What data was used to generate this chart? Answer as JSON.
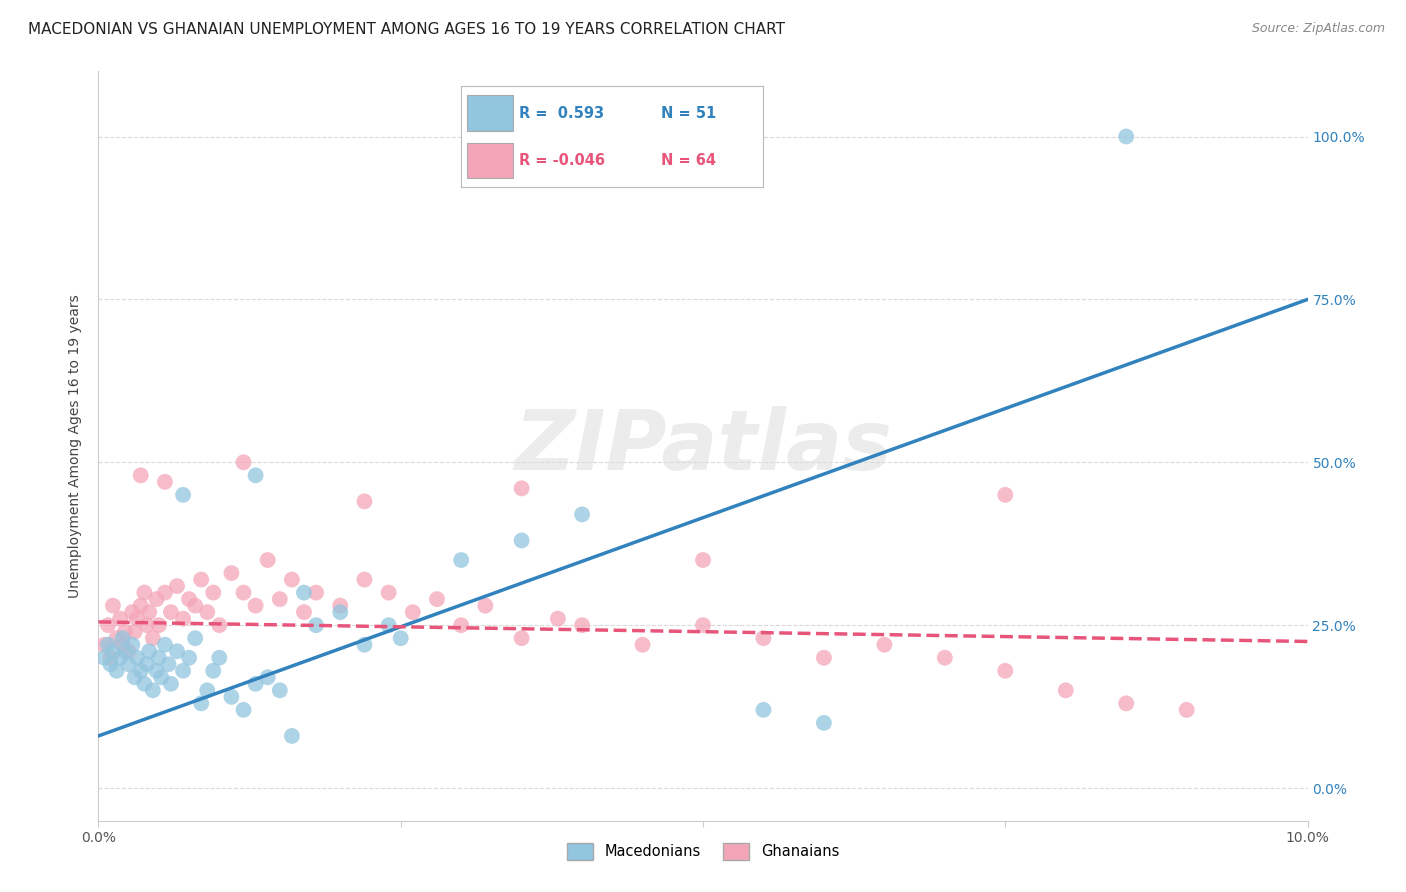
{
  "title": "MACEDONIAN VS GHANAIAN UNEMPLOYMENT AMONG AGES 16 TO 19 YEARS CORRELATION CHART",
  "source": "Source: ZipAtlas.com",
  "ylabel": "Unemployment Among Ages 16 to 19 years",
  "xlim": [
    0.0,
    10.0
  ],
  "ylim": [
    -0.05,
    1.1
  ],
  "yticks": [
    0.0,
    0.25,
    0.5,
    0.75,
    1.0
  ],
  "ytick_labels": [
    "0.0%",
    "25.0%",
    "50.0%",
    "75.0%",
    "100.0%"
  ],
  "xticks": [
    0.0,
    2.5,
    5.0,
    7.5,
    10.0
  ],
  "xtick_labels": [
    "0.0%",
    "",
    "",
    "",
    "10.0%"
  ],
  "blue_color": "#92c5de",
  "pink_color": "#f4a6b8",
  "blue_line_color": "#3182bd",
  "pink_line_color": "#e8557a",
  "blue_R": 0.593,
  "blue_N": 51,
  "pink_R": -0.046,
  "pink_N": 64,
  "legend_label_blue": "Macedonians",
  "legend_label_pink": "Ghanaians",
  "background_color": "#ffffff",
  "grid_color": "#d0d0d0",
  "watermark_text": "ZIPatlas",
  "title_fontsize": 11,
  "source_fontsize": 9,
  "blue_line_y0": 0.08,
  "blue_line_y1": 0.75,
  "pink_line_y0": 0.255,
  "pink_line_y1": 0.225,
  "macedonian_x": [
    0.05,
    0.08,
    0.1,
    0.12,
    0.15,
    0.18,
    0.2,
    0.22,
    0.25,
    0.28,
    0.3,
    0.32,
    0.35,
    0.38,
    0.4,
    0.42,
    0.45,
    0.48,
    0.5,
    0.52,
    0.55,
    0.58,
    0.6,
    0.65,
    0.7,
    0.75,
    0.8,
    0.85,
    0.9,
    0.95,
    1.0,
    1.1,
    1.2,
    1.3,
    1.4,
    1.5,
    1.6,
    1.7,
    1.8,
    2.0,
    2.2,
    2.4,
    2.5,
    3.0,
    3.5,
    4.0,
    5.5,
    6.0,
    8.5,
    0.7,
    1.3
  ],
  "macedonian_y": [
    0.2,
    0.22,
    0.19,
    0.21,
    0.18,
    0.2,
    0.23,
    0.21,
    0.19,
    0.22,
    0.17,
    0.2,
    0.18,
    0.16,
    0.19,
    0.21,
    0.15,
    0.18,
    0.2,
    0.17,
    0.22,
    0.19,
    0.16,
    0.21,
    0.18,
    0.2,
    0.23,
    0.13,
    0.15,
    0.18,
    0.2,
    0.14,
    0.12,
    0.16,
    0.17,
    0.15,
    0.08,
    0.3,
    0.25,
    0.27,
    0.22,
    0.25,
    0.23,
    0.35,
    0.38,
    0.42,
    0.12,
    0.1,
    1.0,
    0.45,
    0.48
  ],
  "ghanaian_x": [
    0.05,
    0.08,
    0.1,
    0.12,
    0.15,
    0.18,
    0.2,
    0.22,
    0.25,
    0.28,
    0.3,
    0.32,
    0.35,
    0.38,
    0.4,
    0.42,
    0.45,
    0.48,
    0.5,
    0.55,
    0.6,
    0.65,
    0.7,
    0.75,
    0.8,
    0.85,
    0.9,
    0.95,
    1.0,
    1.1,
    1.2,
    1.3,
    1.4,
    1.5,
    1.6,
    1.7,
    1.8,
    2.0,
    2.2,
    2.4,
    2.6,
    2.8,
    3.0,
    3.2,
    3.5,
    3.8,
    4.0,
    4.5,
    5.0,
    5.5,
    6.0,
    6.5,
    7.0,
    7.5,
    8.0,
    8.5,
    9.0,
    0.35,
    0.55,
    1.2,
    2.2,
    3.5,
    5.0,
    7.5
  ],
  "ghanaian_y": [
    0.22,
    0.25,
    0.2,
    0.28,
    0.23,
    0.26,
    0.22,
    0.24,
    0.21,
    0.27,
    0.24,
    0.26,
    0.28,
    0.3,
    0.25,
    0.27,
    0.23,
    0.29,
    0.25,
    0.3,
    0.27,
    0.31,
    0.26,
    0.29,
    0.28,
    0.32,
    0.27,
    0.3,
    0.25,
    0.33,
    0.3,
    0.28,
    0.35,
    0.29,
    0.32,
    0.27,
    0.3,
    0.28,
    0.32,
    0.3,
    0.27,
    0.29,
    0.25,
    0.28,
    0.23,
    0.26,
    0.25,
    0.22,
    0.25,
    0.23,
    0.2,
    0.22,
    0.2,
    0.18,
    0.15,
    0.13,
    0.12,
    0.48,
    0.47,
    0.5,
    0.44,
    0.46,
    0.35,
    0.45
  ]
}
